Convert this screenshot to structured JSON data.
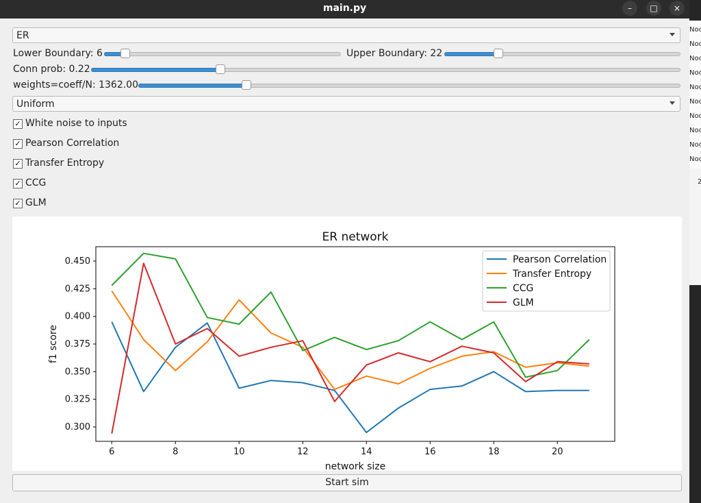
{
  "window": {
    "title": "main.py",
    "min_glyph": "–",
    "max_glyph": "□",
    "close_glyph": "×"
  },
  "controls": {
    "network_type": "ER",
    "lower_boundary_label": "Lower Boundary: 6",
    "upper_boundary_label": "Upper Boundary: 22",
    "conn_prob_label": "Conn prob: 0.22",
    "weights_label": "weights=coeff/N: 1362.00",
    "distribution": "Uniform",
    "slider_levels": {
      "lower_boundary": 0.09,
      "upper_boundary": 0.23,
      "conn_prob": 0.22,
      "weights": 0.2
    },
    "checkboxes": [
      {
        "label": "White noise to inputs",
        "checked": true
      },
      {
        "label": "Pearson Correlation",
        "checked": true
      },
      {
        "label": "Transfer Entropy",
        "checked": true
      },
      {
        "label": "CCG",
        "checked": true
      },
      {
        "label": "GLM",
        "checked": true
      }
    ],
    "check_glyph": "✓",
    "start_button": "Start sim"
  },
  "side_strip": {
    "text": "Noc",
    "bottom_text": "2"
  },
  "chart_data": {
    "type": "line",
    "title": "ER network",
    "xlabel": "network size",
    "ylabel": "f1 score",
    "xlim": [
      5.5,
      21.8
    ],
    "ylim": [
      0.287,
      0.463
    ],
    "xticks": [
      6,
      8,
      10,
      12,
      14,
      16,
      18,
      20
    ],
    "xtick_labels": [
      "6",
      "8",
      "10",
      "12",
      "14",
      "16",
      "18",
      "20"
    ],
    "yticks": [
      0.3,
      0.325,
      0.35,
      0.375,
      0.4,
      0.425,
      0.45
    ],
    "ytick_labels": [
      "0.300",
      "0.325",
      "0.350",
      "0.375",
      "0.400",
      "0.425",
      "0.450"
    ],
    "legend_position": "top-right",
    "x": [
      6,
      7,
      8,
      9,
      10,
      11,
      12,
      13,
      14,
      15,
      16,
      17,
      18,
      19,
      20,
      21
    ],
    "series": [
      {
        "name": "Pearson Correlation",
        "color": "#1f77b4",
        "values": [
          0.395,
          0.332,
          0.372,
          0.394,
          0.335,
          0.342,
          0.34,
          0.333,
          0.295,
          0.317,
          0.334,
          0.337,
          0.35,
          0.332,
          0.333,
          0.333
        ]
      },
      {
        "name": "Transfer Entropy",
        "color": "#ff7f0e",
        "values": [
          0.423,
          0.379,
          0.351,
          0.377,
          0.415,
          0.385,
          0.372,
          0.334,
          0.346,
          0.339,
          0.353,
          0.364,
          0.368,
          0.354,
          0.358,
          0.355
        ]
      },
      {
        "name": "CCG",
        "color": "#2ca02c",
        "values": [
          0.428,
          0.457,
          0.452,
          0.399,
          0.393,
          0.422,
          0.369,
          0.381,
          0.37,
          0.378,
          0.395,
          0.379,
          0.395,
          0.345,
          0.351,
          0.379
        ]
      },
      {
        "name": "GLM",
        "color": "#d62728",
        "values": [
          0.294,
          0.448,
          0.375,
          0.389,
          0.364,
          0.372,
          0.378,
          0.323,
          0.356,
          0.367,
          0.359,
          0.373,
          0.367,
          0.341,
          0.359,
          0.357
        ]
      }
    ]
  }
}
